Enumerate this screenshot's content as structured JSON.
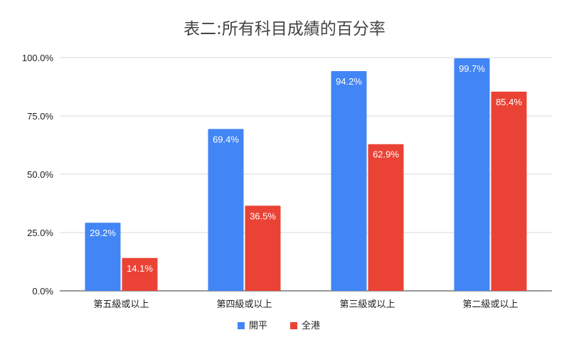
{
  "chart_data": {
    "type": "bar",
    "title": "表二:所有科目成績的百分率",
    "xlabel": "",
    "ylabel": "",
    "categories": [
      "第五級或以上",
      "第四級或以上",
      "第三級或以上",
      "第二級或以上"
    ],
    "series": [
      {
        "name": "開平",
        "color": "#4285f4",
        "values": [
          29.2,
          69.4,
          94.2,
          99.7
        ],
        "labels": [
          "29.2%",
          "69.4%",
          "94.2%",
          "99.7%"
        ]
      },
      {
        "name": "全港",
        "color": "#ea4335",
        "values": [
          14.1,
          36.5,
          62.9,
          85.4
        ],
        "labels": [
          "14.1%",
          "36.5%",
          "62.9%",
          "85.4%"
        ]
      }
    ],
    "ylim": [
      0,
      100
    ],
    "yticks": [
      0,
      25,
      50,
      75,
      100
    ],
    "ytick_labels": [
      "0.0%",
      "25.0%",
      "50.0%",
      "75.0%",
      "100.0%"
    ],
    "grid": true,
    "legend_position": "bottom"
  }
}
